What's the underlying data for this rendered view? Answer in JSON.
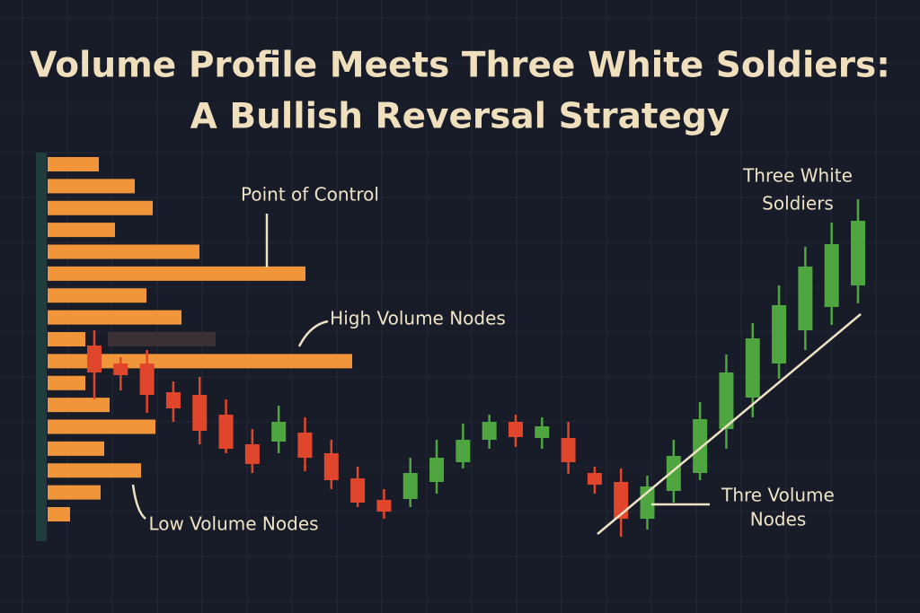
{
  "chart_data": [
    {
      "type": "barh",
      "title": [
        "Volume Profile Meets Three White Soldiers:",
        "A Bullish Reversal Strategy"
      ],
      "categories": [
        null,
        null,
        null,
        null,
        null,
        null,
        null,
        null,
        null,
        null,
        null,
        null,
        null,
        null,
        null,
        null,
        null
      ],
      "values": [
        57,
        97,
        117,
        75,
        169,
        287,
        110,
        149,
        42,
        339,
        42,
        69,
        120,
        63,
        104,
        59,
        25
      ],
      "color": "#f0953a",
      "xlim": [
        0,
        400
      ]
    },
    {
      "type": "candlestick",
      "categories": [
        null,
        null,
        null,
        null,
        null,
        null,
        null,
        null,
        null,
        null,
        null,
        null,
        null,
        null,
        null,
        null,
        null,
        null,
        null,
        null,
        null,
        null,
        null,
        null,
        null,
        null,
        null,
        null,
        null,
        null
      ],
      "open": [
        225,
        205,
        205,
        173,
        170,
        148,
        115,
        118,
        128,
        105,
        77,
        53,
        54,
        73,
        95,
        120,
        140,
        122,
        122,
        83,
        73,
        32,
        63,
        83,
        132,
        167,
        205,
        242,
        268,
        292
      ],
      "high": [
        242,
        212,
        220,
        185,
        190,
        165,
        132,
        158,
        145,
        120,
        90,
        65,
        100,
        120,
        138,
        148,
        148,
        145,
        140,
        90,
        88,
        80,
        120,
        162,
        215,
        250,
        292,
        335,
        362,
        388
      ],
      "low": [
        165,
        175,
        150,
        140,
        115,
        105,
        83,
        105,
        85,
        65,
        45,
        32,
        45,
        60,
        88,
        110,
        112,
        110,
        82,
        60,
        12,
        20,
        50,
        75,
        110,
        145,
        188,
        220,
        248,
        272
      ],
      "close": [
        195,
        192,
        170,
        155,
        130,
        110,
        93,
        140,
        100,
        75,
        50,
        40,
        83,
        100,
        120,
        140,
        123,
        135,
        95,
        70,
        32,
        68,
        102,
        143,
        195,
        233,
        270,
        313,
        338,
        364
      ],
      "up_color": "#4fa540",
      "down_color": "#e0462c",
      "ylim": [
        0,
        440
      ],
      "annotations": {
        "point_of_control": "Point of Control",
        "high_volume_nodes": "High Volume Nodes",
        "low_volume_nodes": "Low Volume Nodes",
        "three_white_soldiers": [
          "Three White",
          "Soldiers"
        ],
        "thre_volume_nodes": [
          "Thre Volume",
          "Nodes"
        ]
      }
    }
  ]
}
